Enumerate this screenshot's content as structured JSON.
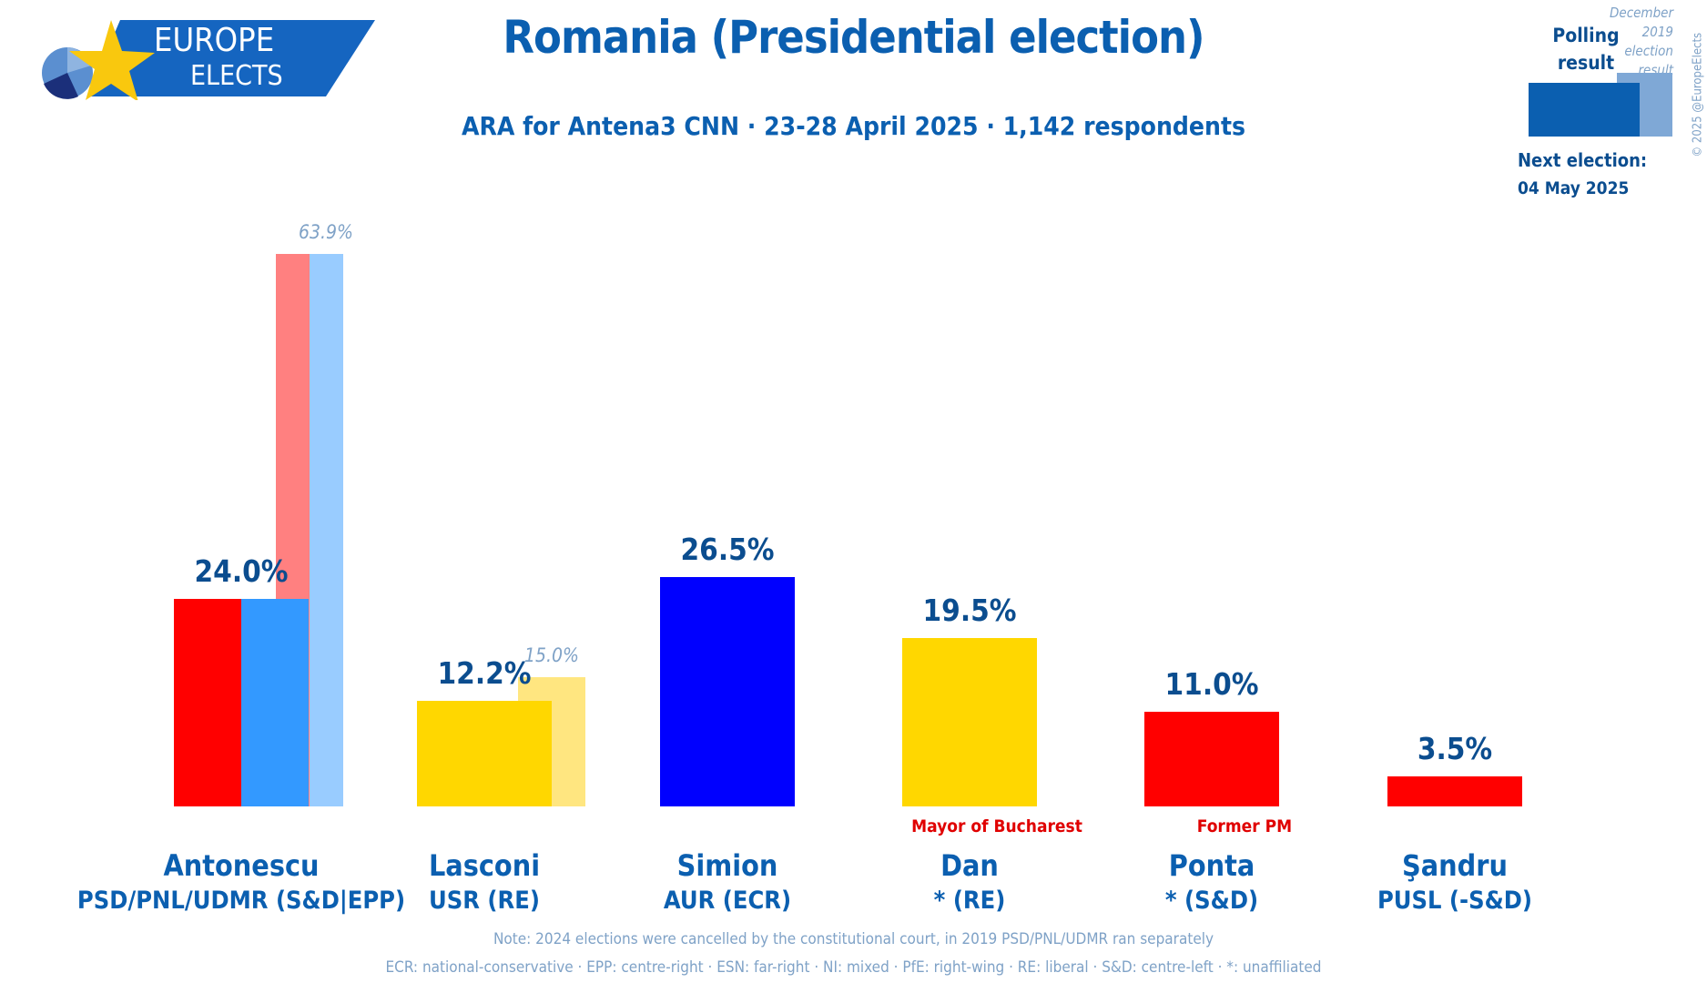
{
  "logo": {
    "line1": "EUROPE",
    "line2": "ELECTS"
  },
  "title": "Romania (Presidential election)",
  "subtitle": "ARA for Antena3 CNN · 23-28 April 2025 · 1,142 respondents",
  "legend": {
    "polling": "Polling result",
    "previous": "December 2019 election result",
    "copyright": "© 2025 @EuropeElects",
    "next_election_label": "Next election:",
    "next_election_date": "04 May 2025",
    "colors": {
      "polling": "#0b5fb0",
      "previous": "#7fa8d6"
    }
  },
  "chart_data": {
    "type": "bar",
    "title": "Romania (Presidential election)",
    "ylim": [
      0,
      65
    ],
    "grid": false,
    "legend": "top-right",
    "candidates": [
      {
        "name": "Antonescu",
        "party": "PSD/PNL/UDMR (S&D|EPP)",
        "value": 24.0,
        "label": "24.0%",
        "previous": 63.9,
        "previous_label": "63.9%",
        "note": "",
        "colors": [
          "#ff0000",
          "#3399ff"
        ],
        "previous_colors": [
          "#ff8080",
          "#99ccff"
        ]
      },
      {
        "name": "Lasconi",
        "party": "USR (RE)",
        "value": 12.2,
        "label": "12.2%",
        "previous": 15.0,
        "previous_label": "15.0%",
        "note": "",
        "colors": [
          "#ffd700"
        ],
        "previous_colors": [
          "#ffe680"
        ]
      },
      {
        "name": "Simion",
        "party": "AUR (ECR)",
        "value": 26.5,
        "label": "26.5%",
        "previous": null,
        "note": "",
        "colors": [
          "#0000ff"
        ]
      },
      {
        "name": "Dan",
        "party": "* (RE)",
        "value": 19.5,
        "label": "19.5%",
        "previous": null,
        "note": "Mayor of Bucharest",
        "colors": [
          "#ffd700"
        ]
      },
      {
        "name": "Ponta",
        "party": "* (S&D)",
        "value": 11.0,
        "label": "11.0%",
        "previous": null,
        "note": "Former PM",
        "colors": [
          "#ff0000"
        ]
      },
      {
        "name": "Şandru",
        "party": "PUSL (-S&D)",
        "value": 3.5,
        "label": "3.5%",
        "previous": null,
        "note": "",
        "colors": [
          "#ff0000"
        ]
      }
    ]
  },
  "footer": {
    "note": "Note: 2024 elections were cancelled by the constitutional court, in 2019 PSD/PNL/UDMR ran separately",
    "glossary": "ECR: national-conservative · EPP: centre-right · ESN: far-right · NI: mixed · PfE: right-wing · RE: liberal · S&D: centre-left · *: unaffiliated"
  }
}
